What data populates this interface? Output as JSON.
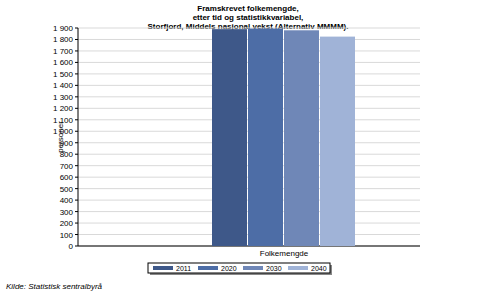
{
  "chart_data": {
    "type": "bar",
    "title": [
      "Framskrevet folkemengde,",
      "etter tid og statistikkvariabel,",
      "Storfjord, Middels nasjonal vekst (Alternativ MMMM)."
    ],
    "y_label": "personer",
    "source": "Kilde: Statistisk sentralbyrå",
    "categories": [
      "Folkemengde"
    ],
    "series": [
      {
        "name": "2011",
        "color": "#3e5889",
        "values": [
          1890
        ]
      },
      {
        "name": "2020",
        "color": "#4d6da6",
        "values": [
          1895
        ]
      },
      {
        "name": "2030",
        "color": "#6f87b7",
        "values": [
          1880
        ]
      },
      {
        "name": "2040",
        "color": "#a0b3d7",
        "values": [
          1825
        ]
      }
    ],
    "ylim": [
      0,
      1900
    ],
    "yticks": [
      0,
      100,
      200,
      300,
      400,
      500,
      600,
      700,
      800,
      900,
      {
        "value": 1000,
        "label": "1 000"
      },
      {
        "value": 1100,
        "label": "1 100"
      },
      {
        "value": 1200,
        "label": "1 200"
      },
      {
        "value": 1300,
        "label": "1 300"
      },
      {
        "value": 1400,
        "label": "1 400"
      },
      {
        "value": 1500,
        "label": "1 500"
      },
      {
        "value": 1600,
        "label": "1 600"
      },
      {
        "value": 1700,
        "label": "1 700"
      },
      {
        "value": 1800,
        "label": "1 800"
      },
      {
        "value": 1900,
        "label": "1 900"
      }
    ],
    "grid": true,
    "legend": "bottom"
  }
}
